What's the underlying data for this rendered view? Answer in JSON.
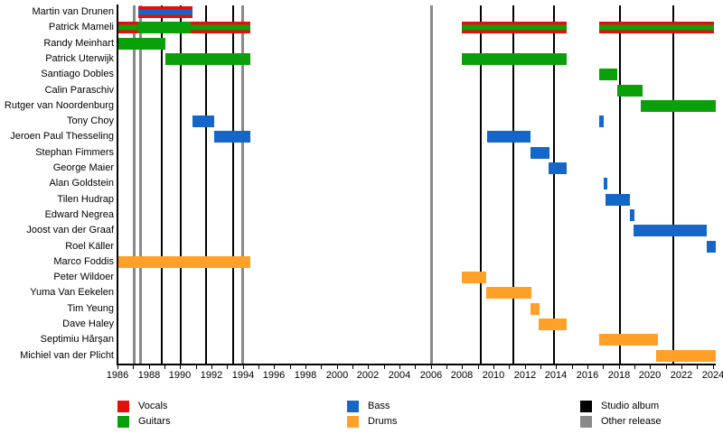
{
  "chart_data": {
    "type": "timeline",
    "title": "",
    "x_axis": {
      "min": 1986,
      "max": 2024.2,
      "tick_step": 1,
      "label_step": 2,
      "first_label": 1986,
      "last_label": 2024
    },
    "role_colors": {
      "vocals": "#e60d0d",
      "guitars": "#0aa00a",
      "bass": "#1467c8",
      "drums": "#ffa128"
    },
    "event_colors": {
      "studio_album": "#000000",
      "other_release": "#898989"
    },
    "members": [
      {
        "name": "Martin van Drunen",
        "segments": [
          {
            "start": 1987.3,
            "end": 1990.8,
            "roles": [
              "vocals",
              "bass"
            ]
          }
        ]
      },
      {
        "name": "Patrick Mameli",
        "segments": [
          {
            "start": 1986.05,
            "end": 1987.3,
            "roles": [
              "vocals",
              "guitars"
            ]
          },
          {
            "start": 1987.3,
            "end": 1990.65,
            "roles": [
              "guitars"
            ]
          },
          {
            "start": 1990.65,
            "end": 1994.5,
            "roles": [
              "vocals",
              "guitars"
            ]
          },
          {
            "start": 2008.0,
            "end": 2014.7,
            "roles": [
              "vocals",
              "guitars"
            ]
          },
          {
            "start": 2016.75,
            "end": 2024.1,
            "roles": [
              "vocals",
              "guitars"
            ]
          }
        ]
      },
      {
        "name": "Randy Meinhart",
        "segments": [
          {
            "start": 1986.05,
            "end": 1989.05,
            "roles": [
              "guitars"
            ]
          }
        ]
      },
      {
        "name": "Patrick Uterwijk",
        "segments": [
          {
            "start": 1989.05,
            "end": 1994.5,
            "roles": [
              "guitars"
            ]
          },
          {
            "start": 2008.0,
            "end": 2014.7,
            "roles": [
              "guitars"
            ]
          }
        ]
      },
      {
        "name": "Santiago Dobles",
        "segments": [
          {
            "start": 2016.75,
            "end": 2017.9,
            "roles": [
              "guitars"
            ]
          }
        ]
      },
      {
        "name": "Calin Paraschiv",
        "segments": [
          {
            "start": 2017.9,
            "end": 2019.5,
            "roles": [
              "guitars"
            ]
          }
        ]
      },
      {
        "name": "Rutger van Noordenburg",
        "segments": [
          {
            "start": 2019.4,
            "end": 2024.2,
            "roles": [
              "guitars"
            ]
          }
        ]
      },
      {
        "name": "Tony Choy",
        "segments": [
          {
            "start": 1990.8,
            "end": 1992.2,
            "roles": [
              "bass"
            ]
          },
          {
            "start": 2016.75,
            "end": 2017.05,
            "roles": [
              "bass"
            ]
          }
        ]
      },
      {
        "name": "Jeroen Paul Thesseling",
        "segments": [
          {
            "start": 1992.2,
            "end": 1994.5,
            "roles": [
              "bass"
            ]
          },
          {
            "start": 2009.6,
            "end": 2012.35,
            "roles": [
              "bass"
            ]
          }
        ]
      },
      {
        "name": "Stephan Fimmers",
        "segments": [
          {
            "start": 2012.35,
            "end": 2013.6,
            "roles": [
              "bass"
            ]
          }
        ]
      },
      {
        "name": "George Maier",
        "segments": [
          {
            "start": 2013.5,
            "end": 2014.7,
            "roles": [
              "bass"
            ]
          }
        ]
      },
      {
        "name": "Alan Goldstein",
        "segments": [
          {
            "start": 2017.05,
            "end": 2017.3,
            "roles": [
              "bass"
            ]
          }
        ]
      },
      {
        "name": "Tilen Hudrap",
        "segments": [
          {
            "start": 2017.15,
            "end": 2018.7,
            "roles": [
              "bass"
            ]
          }
        ]
      },
      {
        "name": "Edward Negrea",
        "segments": [
          {
            "start": 2018.7,
            "end": 2019.0,
            "roles": [
              "bass"
            ]
          }
        ]
      },
      {
        "name": "Joost van der Graaf",
        "segments": [
          {
            "start": 2018.95,
            "end": 2023.6,
            "roles": [
              "bass"
            ]
          }
        ]
      },
      {
        "name": "Roel Käller",
        "segments": [
          {
            "start": 2023.6,
            "end": 2024.2,
            "roles": [
              "bass"
            ]
          }
        ]
      },
      {
        "name": "Marco Foddis",
        "segments": [
          {
            "start": 1986.05,
            "end": 1994.5,
            "roles": [
              "drums"
            ]
          }
        ]
      },
      {
        "name": "Peter Wildoer",
        "segments": [
          {
            "start": 2008.0,
            "end": 2009.55,
            "roles": [
              "drums"
            ]
          }
        ]
      },
      {
        "name": "Yuma Van Eekelen",
        "segments": [
          {
            "start": 2009.55,
            "end": 2012.45,
            "roles": [
              "drums"
            ]
          }
        ]
      },
      {
        "name": "Tim Yeung",
        "segments": [
          {
            "start": 2012.35,
            "end": 2012.95,
            "roles": [
              "drums"
            ]
          }
        ]
      },
      {
        "name": "Dave Haley",
        "segments": [
          {
            "start": 2012.9,
            "end": 2014.7,
            "roles": [
              "drums"
            ]
          }
        ]
      },
      {
        "name": "Septimiu Hărşan",
        "segments": [
          {
            "start": 2016.75,
            "end": 2020.5,
            "roles": [
              "drums"
            ]
          }
        ]
      },
      {
        "name": "Michiel van der Plicht",
        "segments": [
          {
            "start": 2020.4,
            "end": 2024.2,
            "roles": [
              "drums"
            ]
          }
        ]
      }
    ],
    "events": [
      {
        "year": 1987.05,
        "type": "other_release"
      },
      {
        "year": 1987.45,
        "type": "other_release"
      },
      {
        "year": 1988.8,
        "type": "studio_album"
      },
      {
        "year": 1990.05,
        "type": "studio_album"
      },
      {
        "year": 1991.65,
        "type": "studio_album"
      },
      {
        "year": 1993.4,
        "type": "studio_album"
      },
      {
        "year": 1993.95,
        "type": "other_release"
      },
      {
        "year": 2006.0,
        "type": "other_release"
      },
      {
        "year": 2009.2,
        "type": "studio_album"
      },
      {
        "year": 2011.3,
        "type": "studio_album"
      },
      {
        "year": 2013.85,
        "type": "studio_album"
      },
      {
        "year": 2018.1,
        "type": "studio_album"
      },
      {
        "year": 2021.5,
        "type": "studio_album"
      }
    ],
    "legend": [
      {
        "label": "Vocals",
        "color": "#e60d0d"
      },
      {
        "label": "Guitars",
        "color": "#0aa00a"
      },
      {
        "label": "Bass",
        "color": "#1467c8"
      },
      {
        "label": "Drums",
        "color": "#ffa128"
      },
      {
        "label": "Studio album",
        "color": "#000000"
      },
      {
        "label": "Other release",
        "color": "#898989"
      }
    ]
  }
}
